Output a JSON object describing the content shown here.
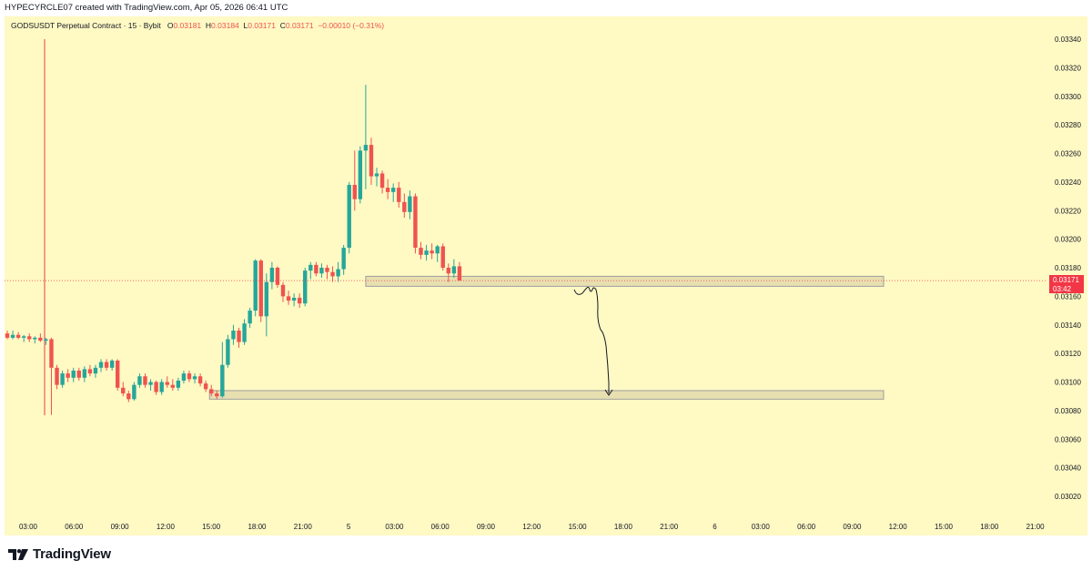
{
  "header": {
    "text": "HYPECYRCLE07 created with TradingView.com, Apr 05, 2026 06:41 UTC"
  },
  "legend": {
    "symbol": "GODSUSDT Perpetual Contract · 15 · Bybit",
    "o_label": "O",
    "o_value": "0.03181",
    "h_label": "H",
    "h_value": "0.03184",
    "l_label": "L",
    "l_value": "0.03171",
    "c_label": "C",
    "c_value": "0.03171",
    "change": "−0.00010 (−0.31%)"
  },
  "price_label": {
    "price": "0.03171",
    "countdown": "03:42"
  },
  "footer": {
    "logo_text": "TradingView"
  },
  "colors": {
    "up": "#26a69a",
    "down": "#ef5350",
    "background": "#fff9c4",
    "zone_fill": "#e8dfb0",
    "zone_stroke": "#9e9e9e",
    "last_price": "#f23645"
  },
  "chart_data": {
    "type": "candlestick",
    "y_ticks": [
      "0.03340",
      "0.03320",
      "0.03300",
      "0.03280",
      "0.03260",
      "0.03240",
      "0.03220",
      "0.03200",
      "0.03180",
      "0.03160",
      "0.03140",
      "0.03120",
      "0.03100",
      "0.03080",
      "0.03060",
      "0.03040",
      "0.03020"
    ],
    "x_ticks": [
      "03:00",
      "06:00",
      "09:00",
      "12:00",
      "15:00",
      "18:00",
      "21:00",
      "5",
      "03:00",
      "06:00",
      "09:00",
      "12:00",
      "15:00",
      "18:00",
      "21:00",
      "6",
      "03:00",
      "06:00",
      "09:00",
      "12:00",
      "15:00",
      "18:00",
      "21:00"
    ],
    "last_price": 0.03171,
    "candles": [
      [
        0.03134,
        0.03136,
        0.0313,
        0.03131
      ],
      [
        0.03131,
        0.03136,
        0.0313,
        0.03133
      ],
      [
        0.03133,
        0.03135,
        0.0313,
        0.03131
      ],
      [
        0.03131,
        0.03133,
        0.03128,
        0.03132
      ],
      [
        0.03132,
        0.03134,
        0.03128,
        0.0313
      ],
      [
        0.0313,
        0.03132,
        0.03127,
        0.03131
      ],
      [
        0.03131,
        0.03134,
        0.03128,
        0.03129
      ],
      [
        0.03129,
        0.03131,
        0.03126,
        0.0313
      ],
      [
        0.0313,
        0.03131,
        0.03077,
        0.0311
      ],
      [
        0.0311,
        0.03112,
        0.03095,
        0.03098
      ],
      [
        0.03098,
        0.03108,
        0.03096,
        0.03106
      ],
      [
        0.03106,
        0.03109,
        0.031,
        0.03103
      ],
      [
        0.03103,
        0.0311,
        0.031,
        0.03108
      ],
      [
        0.03108,
        0.0311,
        0.03101,
        0.03103
      ],
      [
        0.03103,
        0.03111,
        0.031,
        0.03109
      ],
      [
        0.03109,
        0.03112,
        0.03104,
        0.03106
      ],
      [
        0.03106,
        0.03112,
        0.03103,
        0.0311
      ],
      [
        0.0311,
        0.03116,
        0.03107,
        0.03114
      ],
      [
        0.03114,
        0.03116,
        0.03108,
        0.0311
      ],
      [
        0.0311,
        0.03116,
        0.03108,
        0.03115
      ],
      [
        0.03115,
        0.03116,
        0.03094,
        0.03096
      ],
      [
        0.03096,
        0.031,
        0.0309,
        0.03092
      ],
      [
        0.03092,
        0.03094,
        0.03086,
        0.03088
      ],
      [
        0.03088,
        0.031,
        0.03087,
        0.03098
      ],
      [
        0.03098,
        0.03106,
        0.03096,
        0.03104
      ],
      [
        0.03104,
        0.03106,
        0.03096,
        0.03098
      ],
      [
        0.03098,
        0.03102,
        0.03094,
        0.031
      ],
      [
        0.031,
        0.03101,
        0.03091,
        0.03093
      ],
      [
        0.03093,
        0.03102,
        0.03091,
        0.031
      ],
      [
        0.031,
        0.03104,
        0.03096,
        0.03098
      ],
      [
        0.03098,
        0.03102,
        0.03094,
        0.03096
      ],
      [
        0.03096,
        0.03103,
        0.03094,
        0.03101
      ],
      [
        0.03101,
        0.03108,
        0.03099,
        0.03106
      ],
      [
        0.03106,
        0.03108,
        0.031,
        0.03102
      ],
      [
        0.03102,
        0.03106,
        0.03099,
        0.03104
      ],
      [
        0.03104,
        0.03106,
        0.03097,
        0.03099
      ],
      [
        0.03099,
        0.03101,
        0.03093,
        0.03095
      ],
      [
        0.03095,
        0.03098,
        0.0309,
        0.03092
      ],
      [
        0.03092,
        0.03094,
        0.03088,
        0.0309
      ],
      [
        0.0309,
        0.03128,
        0.03089,
        0.03112
      ],
      [
        0.03112,
        0.03133,
        0.0311,
        0.0313
      ],
      [
        0.0313,
        0.0314,
        0.03126,
        0.03136
      ],
      [
        0.03136,
        0.03138,
        0.03124,
        0.03128
      ],
      [
        0.03128,
        0.03144,
        0.03126,
        0.03141
      ],
      [
        0.03141,
        0.03152,
        0.03138,
        0.0315
      ],
      [
        0.0315,
        0.03186,
        0.03146,
        0.03185
      ],
      [
        0.03185,
        0.03186,
        0.03142,
        0.03146
      ],
      [
        0.03146,
        0.03176,
        0.03132,
        0.0317
      ],
      [
        0.0317,
        0.03184,
        0.03165,
        0.0318
      ],
      [
        0.0318,
        0.03181,
        0.03166,
        0.03168
      ],
      [
        0.03168,
        0.0317,
        0.03156,
        0.0316
      ],
      [
        0.0316,
        0.03164,
        0.03154,
        0.03157
      ],
      [
        0.03157,
        0.03162,
        0.03153,
        0.03159
      ],
      [
        0.03159,
        0.03162,
        0.03152,
        0.03155
      ],
      [
        0.03155,
        0.0318,
        0.03153,
        0.03178
      ],
      [
        0.03178,
        0.03184,
        0.03172,
        0.03182
      ],
      [
        0.03182,
        0.03184,
        0.03174,
        0.03176
      ],
      [
        0.03176,
        0.03183,
        0.03173,
        0.0318
      ],
      [
        0.0318,
        0.03182,
        0.03172,
        0.03177
      ],
      [
        0.03177,
        0.03181,
        0.0317,
        0.03174
      ],
      [
        0.03174,
        0.03184,
        0.0317,
        0.03179
      ],
      [
        0.03179,
        0.03196,
        0.03175,
        0.03194
      ],
      [
        0.03194,
        0.0324,
        0.0319,
        0.03238
      ],
      [
        0.03238,
        0.03262,
        0.0322,
        0.03228
      ],
      [
        0.03228,
        0.03265,
        0.03225,
        0.03262
      ],
      [
        0.03262,
        0.03308,
        0.03235,
        0.03266
      ],
      [
        0.03266,
        0.03271,
        0.03238,
        0.03244
      ],
      [
        0.03244,
        0.0325,
        0.03237,
        0.03246
      ],
      [
        0.03246,
        0.03248,
        0.03232,
        0.03236
      ],
      [
        0.03236,
        0.03242,
        0.03228,
        0.03233
      ],
      [
        0.03233,
        0.03239,
        0.03226,
        0.03236
      ],
      [
        0.03236,
        0.0324,
        0.03222,
        0.03226
      ],
      [
        0.03226,
        0.03232,
        0.03215,
        0.03219
      ],
      [
        0.03219,
        0.03234,
        0.03214,
        0.0323
      ],
      [
        0.0323,
        0.03232,
        0.0319,
        0.03194
      ],
      [
        0.03194,
        0.03198,
        0.03186,
        0.03189
      ],
      [
        0.03189,
        0.03196,
        0.03185,
        0.03192
      ],
      [
        0.03192,
        0.03197,
        0.03186,
        0.0319
      ],
      [
        0.0319,
        0.03196,
        0.03184,
        0.03195
      ],
      [
        0.03195,
        0.03197,
        0.03178,
        0.0318
      ],
      [
        0.0318,
        0.03183,
        0.0317,
        0.03176
      ],
      [
        0.03176,
        0.03186,
        0.03173,
        0.03181
      ],
      [
        0.03181,
        0.03184,
        0.03171,
        0.03171
      ]
    ],
    "zones": [
      {
        "from_candle": 66,
        "to_x": "09:00 (day 6)",
        "top": 0.03174,
        "bottom": 0.03167
      },
      {
        "from_candle": 37,
        "to_x": "09:00 (day 6)",
        "top": 0.03094,
        "bottom": 0.03088
      }
    ],
    "projection_path": [
      [
        0.03167,
        15.6
      ],
      [
        0.03135,
        16.0
      ],
      [
        0.0309,
        16.6
      ]
    ]
  }
}
